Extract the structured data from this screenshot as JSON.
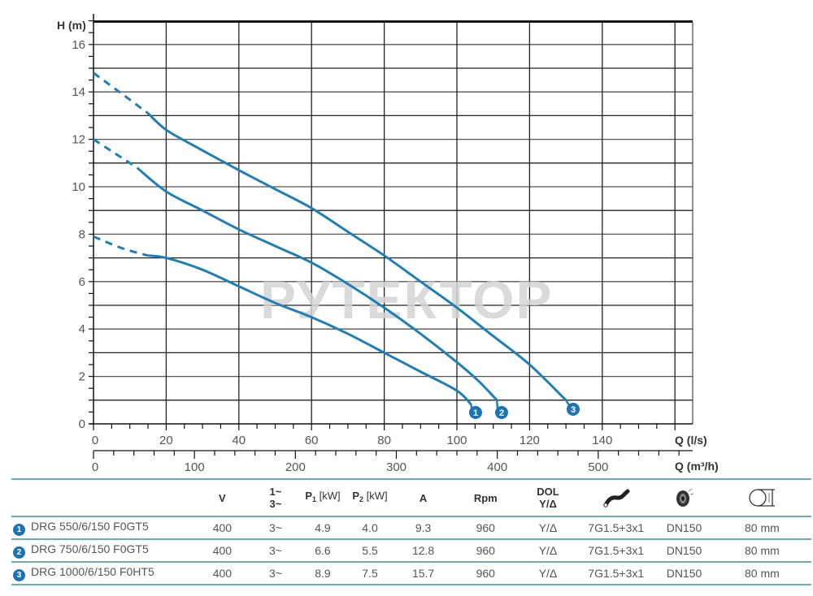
{
  "chart_data": {
    "type": "line",
    "title": "",
    "xlabel": "Q (l/s)",
    "x2label": "Q (m³/h)",
    "ylabel": "H (m)",
    "xlim": [
      0,
      165
    ],
    "ylim": [
      0,
      17
    ],
    "x_ticks": [
      0,
      20,
      40,
      60,
      80,
      100,
      120,
      140
    ],
    "x2_ticks": [
      0,
      100,
      200,
      300,
      400,
      500
    ],
    "y_ticks": [
      0,
      2,
      4,
      6,
      8,
      10,
      12,
      14,
      16
    ],
    "grid": true,
    "legend_position": "markers at curve ends + table below",
    "watermark": "РУТЕКТОР",
    "series": [
      {
        "name": "DRG 550/6/150 F0GT5",
        "marker": "1",
        "dashed_part": {
          "x": [
            0,
            8,
            15
          ],
          "y": [
            7.9,
            7.4,
            7.1
          ]
        },
        "x": [
          15,
          20,
          30,
          40,
          50,
          60,
          70,
          80,
          90,
          100,
          104
        ],
        "y": [
          7.1,
          7.0,
          6.5,
          5.8,
          5.1,
          4.5,
          3.8,
          3.0,
          2.2,
          1.4,
          0.8
        ]
      },
      {
        "name": "DRG 750/6/150 F0GT5",
        "marker": "2",
        "dashed_part": {
          "x": [
            0,
            6,
            12
          ],
          "y": [
            12.0,
            11.4,
            10.8
          ]
        },
        "x": [
          12,
          20,
          30,
          40,
          50,
          60,
          70,
          80,
          90,
          100,
          106,
          111
        ],
        "y": [
          10.8,
          9.8,
          9.0,
          8.2,
          7.5,
          6.8,
          5.9,
          4.9,
          3.8,
          2.6,
          1.8,
          1.0
        ]
      },
      {
        "name": "DRG 1000/6/150 F0HT5",
        "marker": "3",
        "dashed_part": {
          "x": [
            0,
            8,
            15
          ],
          "y": [
            14.8,
            13.9,
            13.1
          ]
        },
        "x": [
          15,
          20,
          28,
          40,
          50,
          60,
          70,
          80,
          90,
          100,
          110,
          120,
          130
        ],
        "y": [
          13.1,
          12.4,
          11.7,
          10.7,
          9.9,
          9.1,
          8.1,
          7.1,
          6.0,
          4.9,
          3.7,
          2.5,
          1.0
        ]
      }
    ]
  },
  "axes": {
    "y_title": "H (m)",
    "x_title": "Q (l/s)",
    "x2_title": "Q (m³/h)",
    "y_labels": [
      "0",
      "2",
      "4",
      "6",
      "8",
      "10",
      "12",
      "14",
      "16"
    ],
    "x_labels": [
      "0",
      "20",
      "40",
      "60",
      "80",
      "100",
      "120",
      "140"
    ],
    "x2_labels": [
      "0",
      "100",
      "200",
      "300",
      "400",
      "500"
    ]
  },
  "markers": [
    "1",
    "2",
    "3"
  ],
  "watermark": "РУТЕКТОР",
  "colors": {
    "curve": "#1f7fb5",
    "badge": "#1d74b3",
    "table_rule": "#6aaabc",
    "grid": "#222222"
  },
  "table": {
    "headers": {
      "v": "V",
      "phase_1": "1~",
      "phase_3": "3~",
      "p1": "P",
      "p1_sub": "1",
      "p1_unit": "[kW]",
      "p2": "P",
      "p2_sub": "2",
      "p2_unit": "[kW]",
      "a": "A",
      "rpm": "Rpm",
      "dol": "DOL",
      "ydelta": "Y/Δ",
      "cable_icon": "cable-icon",
      "flange_icon": "flange-icon",
      "passage_icon": "solid-passage-icon"
    },
    "rows": [
      {
        "num": "1",
        "model": "DRG 550/6/150 F0GT5",
        "v": "400",
        "phase": "3~",
        "p1": "4.9",
        "p2": "4.0",
        "a": "9.3",
        "rpm": "960",
        "start": "Y/Δ",
        "cable": "7G1.5+3x1",
        "outlet": "DN150",
        "passage": "80 mm"
      },
      {
        "num": "2",
        "model": "DRG 750/6/150 F0GT5",
        "v": "400",
        "phase": "3~",
        "p1": "6.6",
        "p2": "5.5",
        "a": "12.8",
        "rpm": "960",
        "start": "Y/Δ",
        "cable": "7G1.5+3x1",
        "outlet": "DN150",
        "passage": "80 mm"
      },
      {
        "num": "3",
        "model": "DRG 1000/6/150 F0HT5",
        "v": "400",
        "phase": "3~",
        "p1": "8.9",
        "p2": "7.5",
        "a": "15.7",
        "rpm": "960",
        "start": "Y/Δ",
        "cable": "7G1.5+3x1",
        "outlet": "DN150",
        "passage": "80 mm"
      }
    ]
  }
}
